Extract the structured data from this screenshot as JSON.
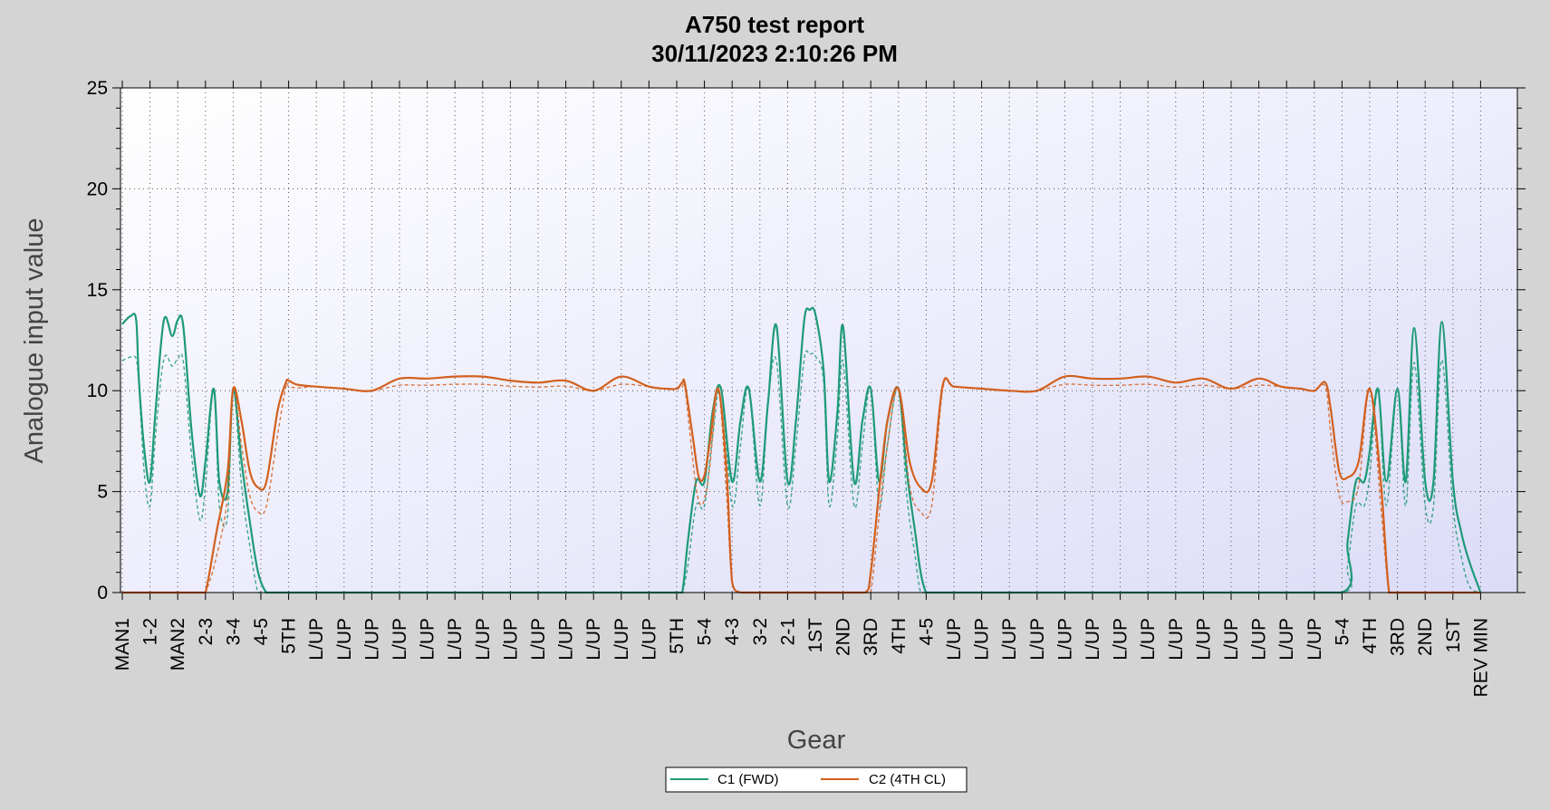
{
  "chart_data": {
    "type": "line",
    "title": "A750 test report",
    "subtitle": "30/11/2023 2:10:26 PM",
    "xlabel": "Gear",
    "ylabel": "Analogue input value",
    "ylim": [
      0,
      25
    ],
    "yticks": [
      0,
      5,
      10,
      15,
      20,
      25
    ],
    "grid": true,
    "legend_position": "bottom-center",
    "categories": [
      "MAN1",
      "1-2",
      "MAN2",
      "2-3",
      "3-4",
      "4-5",
      "5TH",
      "L/UP",
      "L/UP",
      "L/UP",
      "L/UP",
      "L/UP",
      "L/UP",
      "L/UP",
      "L/UP",
      "L/UP",
      "L/UP",
      "L/UP",
      "L/UP",
      "L/UP",
      "5TH",
      "5-4",
      "4-3",
      "3-2",
      "2-1",
      "1ST",
      "2ND",
      "3RD",
      "4TH",
      "4-5",
      "L/UP",
      "L/UP",
      "L/UP",
      "L/UP",
      "L/UP",
      "L/UP",
      "L/UP",
      "L/UP",
      "L/UP",
      "L/UP",
      "L/UP",
      "L/UP",
      "L/UP",
      "L/UP",
      "5-4",
      "4TH",
      "3RD",
      "2ND",
      "1ST",
      "REV MIN"
    ],
    "series": [
      {
        "name": "C1 (FWD)",
        "color": "#1e9a78",
        "x": [
          0.0,
          0.3,
          0.5,
          0.6,
          0.8,
          1.0,
          1.2,
          1.5,
          1.8,
          2.0,
          2.2,
          2.5,
          2.8,
          3.0,
          3.3,
          3.5,
          3.8,
          4.0,
          4.3,
          4.6,
          4.9,
          5.2,
          5.5,
          5.8,
          6.0,
          7.0,
          8.0,
          9.0,
          10.0,
          11.0,
          12.0,
          13.0,
          14.0,
          15.0,
          16.0,
          17.0,
          18.0,
          19.0,
          20.0,
          20.2,
          20.4,
          20.7,
          21.0,
          21.3,
          21.6,
          22.0,
          22.3,
          22.6,
          23.0,
          23.3,
          23.6,
          24.0,
          24.3,
          24.6,
          24.8,
          25.0,
          25.3,
          25.5,
          25.8,
          26.0,
          26.4,
          26.7,
          27.0,
          27.3,
          27.6,
          28.0,
          28.3,
          28.6,
          28.8,
          29.0,
          29.2,
          30.0,
          40.0,
          44.0,
          44.2,
          44.5,
          44.8,
          45.0,
          45.3,
          45.6,
          46.0,
          46.3,
          46.6,
          47.0,
          47.3,
          47.6,
          48.0,
          48.3,
          48.6,
          49.0
        ],
        "y": [
          13.3,
          13.7,
          13.5,
          10.5,
          7.0,
          5.5,
          9.0,
          13.5,
          12.7,
          13.5,
          13.2,
          8.0,
          4.8,
          6.5,
          10.1,
          5.5,
          5.0,
          10.1,
          6.5,
          3.5,
          1.0,
          0.0,
          0.0,
          0.0,
          0.0,
          0.0,
          0.0,
          0.0,
          0.0,
          0.0,
          0.0,
          0.0,
          0.0,
          0.0,
          0.0,
          0.0,
          0.0,
          0.0,
          0.0,
          0.0,
          2.5,
          5.5,
          5.5,
          9.0,
          10.1,
          5.5,
          8.5,
          10.1,
          5.5,
          9.5,
          13.2,
          5.5,
          8.5,
          13.5,
          14.0,
          13.8,
          11.0,
          5.5,
          9.0,
          13.2,
          5.5,
          8.5,
          10.1,
          5.5,
          8.5,
          10.1,
          6.0,
          3.0,
          1.0,
          0.0,
          0.0,
          0.0,
          0.0,
          0.0,
          2.5,
          5.5,
          5.5,
          7.0,
          10.1,
          5.5,
          10.1,
          5.5,
          13.1,
          5.5,
          5.5,
          13.4,
          5.5,
          3.0,
          1.5,
          0.0
        ]
      },
      {
        "name": "C2 (4TH CL)",
        "color": "#d2601e",
        "x": [
          0.0,
          1.0,
          2.0,
          2.8,
          3.0,
          3.4,
          3.8,
          4.0,
          4.3,
          4.6,
          4.9,
          5.2,
          5.6,
          5.9,
          6.0,
          6.3,
          7.0,
          8.0,
          9.0,
          10.0,
          11.0,
          12.0,
          13.0,
          14.0,
          15.0,
          16.0,
          17.0,
          18.0,
          19.0,
          19.6,
          20.0,
          20.2,
          20.3,
          20.6,
          20.8,
          21.0,
          21.2,
          21.5,
          21.8,
          22.0,
          22.3,
          23.0,
          24.0,
          25.0,
          26.0,
          26.8,
          27.0,
          27.3,
          27.6,
          28.0,
          28.4,
          28.8,
          29.2,
          29.6,
          30.0,
          31.0,
          32.0,
          33.0,
          34.0,
          35.0,
          36.0,
          37.0,
          38.0,
          39.0,
          40.0,
          41.0,
          41.8,
          42.5,
          43.0,
          43.4,
          43.6,
          43.9,
          44.2,
          44.6,
          45.0,
          45.4,
          45.7,
          46.0,
          47.0,
          48.0,
          49.0
        ],
        "y": [
          0.0,
          0.0,
          0.0,
          0.0,
          0.0,
          3.0,
          6.0,
          10.1,
          8.5,
          6.0,
          5.2,
          5.5,
          9.0,
          10.4,
          10.5,
          10.3,
          10.2,
          10.1,
          10.0,
          10.6,
          10.6,
          10.7,
          10.7,
          10.5,
          10.4,
          10.5,
          10.0,
          10.7,
          10.2,
          10.1,
          10.1,
          10.4,
          10.3,
          7.5,
          5.7,
          5.8,
          7.5,
          10.1,
          6.0,
          0.5,
          0.0,
          0.0,
          0.0,
          0.0,
          0.0,
          0.0,
          1.0,
          5.0,
          8.5,
          10.1,
          6.5,
          5.2,
          5.5,
          10.3,
          10.2,
          10.1,
          10.0,
          10.0,
          10.7,
          10.6,
          10.6,
          10.7,
          10.4,
          10.6,
          10.1,
          10.6,
          10.2,
          10.1,
          10.0,
          10.4,
          9.0,
          6.0,
          5.7,
          6.5,
          10.1,
          5.5,
          0.0,
          0.0,
          0.0,
          0.0,
          0.0
        ]
      }
    ]
  },
  "colors": {
    "background": "#d4d4d4",
    "plot_background": "#eeeefa",
    "grid": "#555555",
    "c1": "#1e9a78",
    "c2": "#d2601e"
  }
}
